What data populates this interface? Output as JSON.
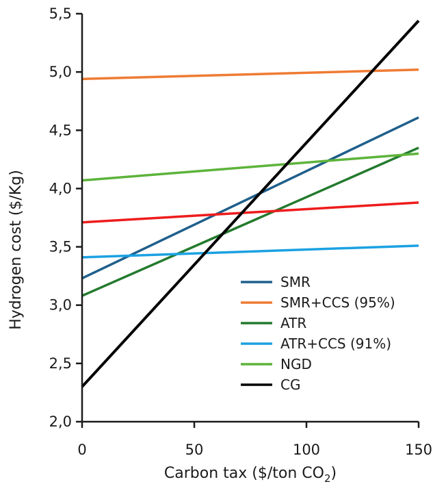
{
  "chart_data": {
    "type": "line",
    "xlabel": "Carbon tax  ($/ton CO",
    "xlabel_subscript": "2",
    "xlabel_suffix": ")",
    "ylabel": "Hydrogen cost ($/Kg)",
    "xlim": [
      0,
      150
    ],
    "ylim": [
      2.0,
      5.5
    ],
    "x_ticks": [
      0,
      50,
      100,
      150
    ],
    "x_tick_labels": [
      "0",
      "50",
      "100",
      "150"
    ],
    "y_ticks": [
      2.0,
      2.5,
      3.0,
      3.5,
      4.0,
      4.5,
      5.0,
      5.5
    ],
    "y_tick_labels": [
      "2,0",
      "2,5",
      "3,0",
      "3,5",
      "4,0",
      "4,5",
      "5,0",
      "5,5"
    ],
    "grid": false,
    "legend_position": "bottom-right",
    "series": [
      {
        "name": "SMR",
        "color": "#1f5f8b",
        "x": [
          0,
          150
        ],
        "y": [
          3.23,
          4.61
        ],
        "in_legend": true
      },
      {
        "name": "SMR+CCS (95%)",
        "color": "#ef7b33",
        "x": [
          0,
          150
        ],
        "y": [
          4.94,
          5.02
        ],
        "in_legend": true
      },
      {
        "name": "ATR",
        "color": "#237a2d",
        "x": [
          0,
          150
        ],
        "y": [
          3.08,
          4.35
        ],
        "in_legend": true
      },
      {
        "name": "ATR+CCS (91%)",
        "color": "#1ba1e2",
        "x": [
          0,
          150
        ],
        "y": [
          3.41,
          3.51
        ],
        "in_legend": true
      },
      {
        "name": "NGD",
        "color": "#5db33b",
        "x": [
          0,
          150
        ],
        "y": [
          4.07,
          4.3
        ],
        "in_legend": true
      },
      {
        "name": "CG",
        "color": "#000000",
        "x": [
          0,
          150
        ],
        "y": [
          2.3,
          5.44
        ],
        "in_legend": true
      },
      {
        "name": "",
        "color": "#ee1c1c",
        "x": [
          0,
          150
        ],
        "y": [
          3.71,
          3.88
        ],
        "in_legend": false
      }
    ]
  }
}
